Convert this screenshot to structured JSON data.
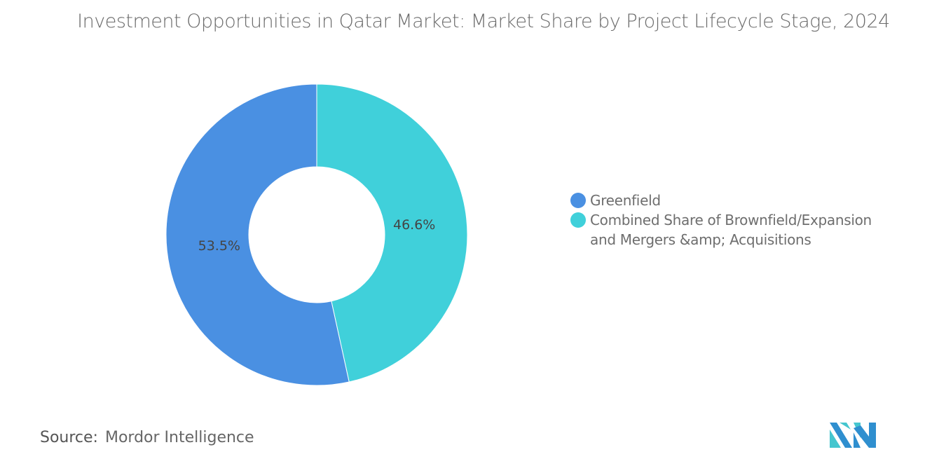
{
  "chart_data": {
    "type": "pie",
    "subtype": "donut",
    "title": "Investment Opportunities in Qatar Market: Market Share by Project Lifecycle Stage, 2024",
    "categories": [
      "Greenfield",
      "Combined Share of Brownfield/Expansion and Mergers &amp; Acquisitions"
    ],
    "values": [
      53.5,
      46.6
    ],
    "data_labels": [
      "53.5%",
      "46.6%"
    ],
    "colors": [
      "#4a90e2",
      "#40d0da"
    ],
    "legend_position": "right"
  },
  "source": {
    "label": "Source:",
    "value": "Mordor Intelligence"
  },
  "logo": {
    "name": "Mordor Intelligence logo",
    "colors": [
      "#2f8fcf",
      "#45c6cf"
    ]
  }
}
